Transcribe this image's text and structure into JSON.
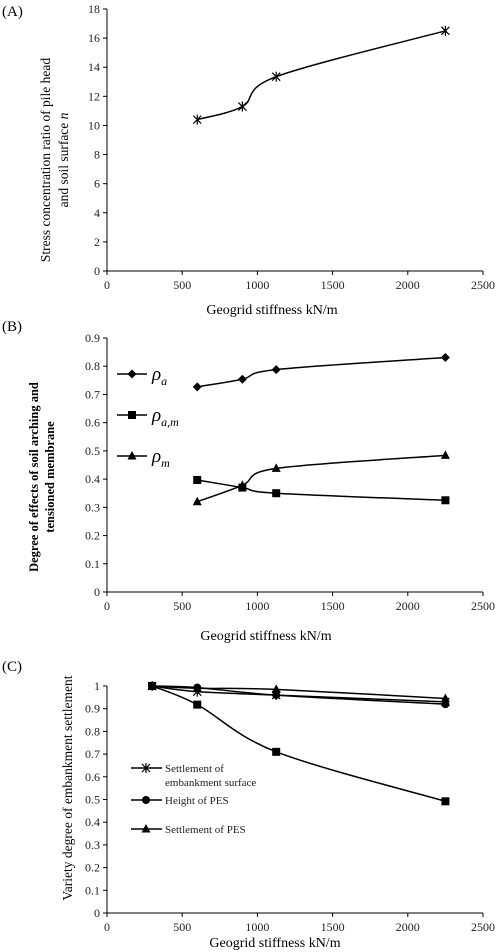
{
  "chart_data": [
    {
      "panel": "(A)",
      "type": "line",
      "xlabel": "Geogrid stiffness   kN/m",
      "ylabel_line1": "Stress concentration ratio of pile head",
      "ylabel_line2_prefix": "and soil surface ",
      "ylabel_line2_var": "n",
      "xlim": [
        0,
        2500
      ],
      "ylim": [
        0,
        18
      ],
      "xticks": [
        0,
        500,
        1000,
        1500,
        2000,
        2500
      ],
      "yticks": [
        0,
        2,
        4,
        6,
        8,
        10,
        12,
        14,
        16,
        18
      ],
      "series": [
        {
          "marker": "star",
          "x": [
            600,
            900,
            1125,
            2250
          ],
          "y": [
            10.4,
            11.3,
            13.35,
            16.5
          ]
        }
      ]
    },
    {
      "panel": "(B)",
      "type": "line",
      "xlabel": "Geogrid stiffness   kN/m",
      "ylabel_line1": "Degree of effects of soil arching and",
      "ylabel_line2": "tensioned membrane",
      "xlim": [
        0,
        2500
      ],
      "ylim": [
        0,
        0.9
      ],
      "xticks": [
        0,
        500,
        1000,
        1500,
        2000,
        2500
      ],
      "yticks": [
        0,
        0.1,
        0.2,
        0.3,
        0.4,
        0.5,
        0.6,
        0.7,
        0.8,
        0.9
      ],
      "series": [
        {
          "name_base": "ρ",
          "name_sub": "a",
          "marker": "diamond",
          "x": [
            600,
            900,
            1125,
            2250
          ],
          "y": [
            0.727,
            0.754,
            0.788,
            0.831
          ]
        },
        {
          "name_base": "ρ",
          "name_sub": "a,m",
          "marker": "square",
          "x": [
            600,
            900,
            1125,
            2250
          ],
          "y": [
            0.397,
            0.37,
            0.35,
            0.325
          ]
        },
        {
          "name_base": "ρ",
          "name_sub": "m",
          "marker": "triangle",
          "x": [
            600,
            900,
            1125,
            2250
          ],
          "y": [
            0.32,
            0.378,
            0.438,
            0.484
          ]
        }
      ]
    },
    {
      "panel": "(C)",
      "type": "line",
      "xlabel": "Geogrid stiffness  kN/m",
      "ylabel": "Variety degree of embankment settlement",
      "xlim": [
        0,
        2500
      ],
      "ylim": [
        0,
        1
      ],
      "xticks": [
        0,
        500,
        1000,
        1500,
        2000,
        2500
      ],
      "yticks": [
        0,
        0.1,
        0.2,
        0.3,
        0.4,
        0.5,
        0.6,
        0.7,
        0.8,
        0.9,
        1
      ],
      "series": [
        {
          "name_line1": "Settlement of",
          "name_line2": "embankment surface",
          "marker": "star",
          "x": [
            300,
            600,
            1125,
            2250
          ],
          "y": [
            1.0,
            0.975,
            0.96,
            0.93
          ]
        },
        {
          "name": "Height of PES",
          "marker": "circle",
          "x": [
            300,
            600,
            1125,
            2250
          ],
          "y": [
            1.0,
            0.993,
            0.96,
            0.92
          ]
        },
        {
          "name": "Settlement of PES",
          "marker": "triangle",
          "x": [
            300,
            600,
            1125,
            2250
          ],
          "y": [
            1.0,
            0.99,
            0.985,
            0.945
          ]
        },
        {
          "marker": "square",
          "x": [
            300,
            600,
            1125,
            2250
          ],
          "y": [
            1.0,
            0.918,
            0.71,
            0.492
          ]
        }
      ]
    }
  ]
}
